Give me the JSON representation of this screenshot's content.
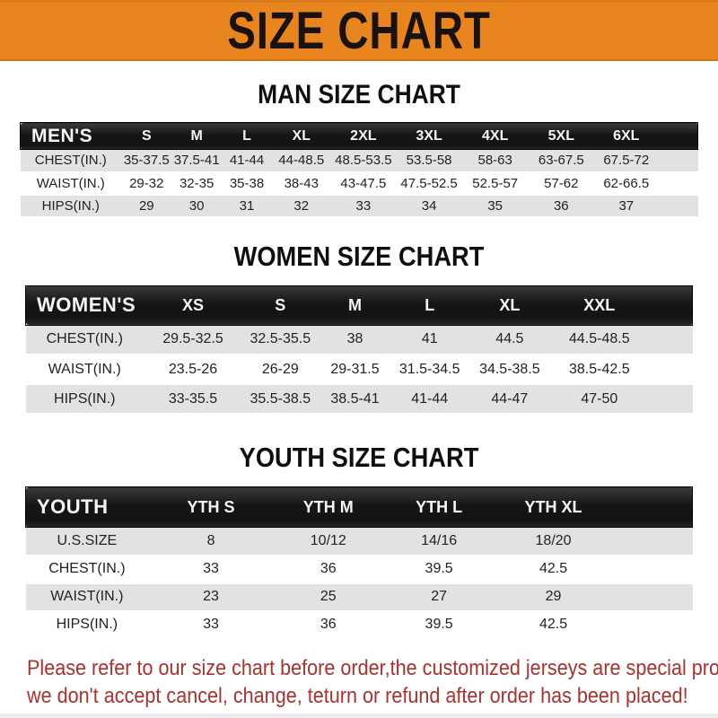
{
  "banner": {
    "title": "SIZE CHART"
  },
  "sections": [
    {
      "id": "men",
      "title": "MAN SIZE CHART",
      "table": {
        "header": [
          "MEN'S",
          "S",
          "M",
          "L",
          "XL",
          "2XL",
          "3XL",
          "4XL",
          "5XL",
          "6XL"
        ],
        "rows": [
          {
            "label": "CHEST(IN.)",
            "values": [
              "35-37.5",
              "37.5-41",
              "41-44",
              "44-48.5",
              "48.5-53.5",
              "53.5-58",
              "58-63",
              "63-67.5",
              "67.5-72"
            ]
          },
          {
            "label": "WAIST(IN.)",
            "values": [
              "29-32",
              "32-35",
              "35-38",
              "38-43",
              "43-47.5",
              "47.5-52.5",
              "52.5-57",
              "57-62",
              "62-66.5"
            ]
          },
          {
            "label": "HIPS(IN.)",
            "values": [
              "29",
              "30",
              "31",
              "32",
              "33",
              "34",
              "35",
              "36",
              "37"
            ]
          }
        ]
      }
    },
    {
      "id": "women",
      "title": "WOMEN SIZE CHART",
      "table": {
        "header": [
          "WOMEN'S",
          "XS",
          "S",
          "M",
          "L",
          "XL",
          "XXL"
        ],
        "rows": [
          {
            "label": "CHEST(IN.)",
            "values": [
              "29.5-32.5",
              "32.5-35.5",
              "38",
              "41",
              "44.5",
              "44.5-48.5"
            ]
          },
          {
            "label": "WAIST(IN.)",
            "values": [
              "23.5-26",
              "26-29",
              "29-31.5",
              "31.5-34.5",
              "34.5-38.5",
              "38.5-42.5"
            ]
          },
          {
            "label": "HIPS(IN.)",
            "values": [
              "33-35.5",
              "35.5-38.5",
              "38.5-41",
              "41-44",
              "44-47",
              "47-50"
            ]
          }
        ]
      }
    },
    {
      "id": "youth",
      "title": "YOUTH SIZE CHART",
      "table": {
        "header": [
          "YOUTH",
          "YTH S",
          "YTH M",
          "YTH L",
          "YTH XL"
        ],
        "rows": [
          {
            "label": "U.S.SIZE",
            "values": [
              "8",
              "10/12",
              "14/16",
              "18/20"
            ]
          },
          {
            "label": "CHEST(IN.)",
            "values": [
              "33",
              "36",
              "39.5",
              "42.5"
            ]
          },
          {
            "label": "WAIST(IN.)",
            "values": [
              "23",
              "25",
              "27",
              "29"
            ]
          },
          {
            "label": "HIPS(IN.)",
            "values": [
              "33",
              "36",
              "39.5",
              "42.5"
            ]
          }
        ]
      }
    }
  ],
  "footer": {
    "lines": [
      "Please refer to our size chart before order,the customized jerseys are special products,",
      "we don't accept cancel, change, teturn or refund after order has been placed!"
    ]
  },
  "colors": {
    "banner_orange": "#E9851E",
    "header_bar_black": "#1A1A1A",
    "row_gray": "#E4E2E0",
    "footer_red": "#A8332E",
    "table_text": "#222222"
  }
}
